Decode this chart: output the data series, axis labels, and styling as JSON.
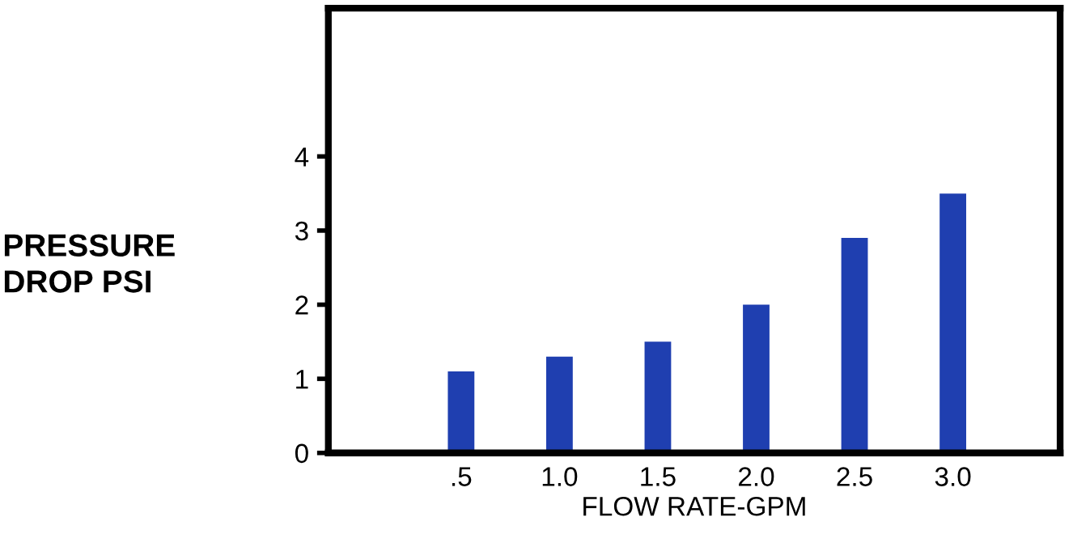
{
  "chart_data": {
    "type": "bar",
    "xlabel": "FLOW RATE-GPM",
    "ylabel": "PRESSURE\nDROP PSI",
    "categories": [
      ".5",
      "1.0",
      "1.5",
      "2.0",
      "2.5",
      "3.0"
    ],
    "values": [
      1.1,
      1.3,
      1.5,
      2.0,
      2.9,
      3.5
    ],
    "color": "#1f3fb0",
    "ylim": [
      0,
      6
    ],
    "yticks": [
      0,
      1,
      2,
      3,
      4
    ],
    "grid": false
  }
}
